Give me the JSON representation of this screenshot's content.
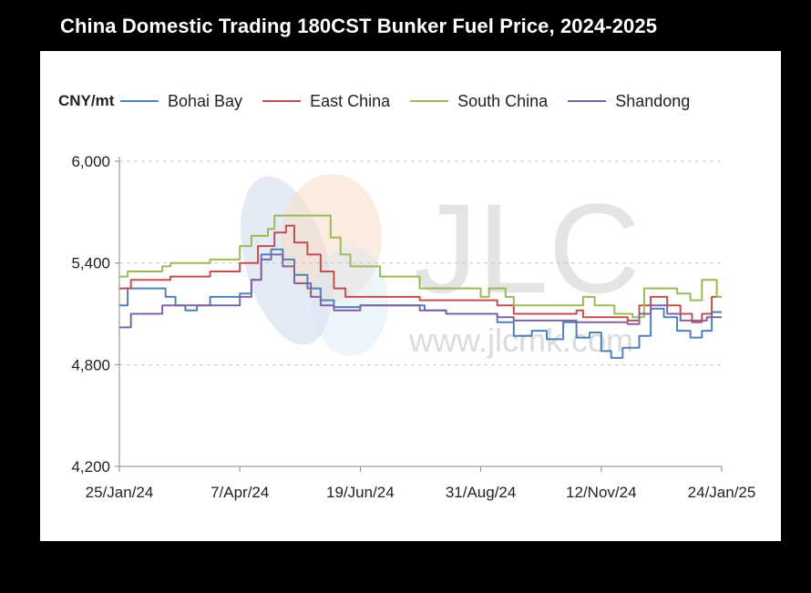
{
  "chart_data": {
    "type": "line",
    "title": "China Domestic Trading 180CST Bunker Fuel Price, 2024-2025",
    "ylabel": "CNY/mt",
    "ylim": [
      4200,
      6000
    ],
    "yticks": [
      "6,000",
      "5,400",
      "4,800",
      "4,200"
    ],
    "ytick_values": [
      6000,
      5400,
      4800,
      4200
    ],
    "xlim": [
      "2024-01-25",
      "2025-01-24"
    ],
    "xticks": [
      "25/Jan/24",
      "7/Apr/24",
      "19/Jun/24",
      "31/Aug/24",
      "12/Nov/24",
      "24/Jan/25"
    ],
    "xtick_dates": [
      "2024-01-25",
      "2024-04-07",
      "2024-06-19",
      "2024-08-31",
      "2024-11-12",
      "2025-01-24"
    ],
    "grid": "horizontal dashed",
    "legend_position": "top",
    "watermark": {
      "logo_text": "JLC",
      "url_text": "www.jlcmk.com"
    },
    "series": [
      {
        "name": "Bohai Bay",
        "color": "#4f81bd",
        "points": [
          [
            "2024-01-25",
            5150
          ],
          [
            "2024-01-30",
            5250
          ],
          [
            "2024-02-18",
            5250
          ],
          [
            "2024-02-22",
            5200
          ],
          [
            "2024-02-28",
            5150
          ],
          [
            "2024-03-05",
            5120
          ],
          [
            "2024-03-12",
            5150
          ],
          [
            "2024-03-20",
            5200
          ],
          [
            "2024-04-07",
            5220
          ],
          [
            "2024-04-14",
            5300
          ],
          [
            "2024-04-20",
            5450
          ],
          [
            "2024-04-26",
            5480
          ],
          [
            "2024-05-03",
            5420
          ],
          [
            "2024-05-10",
            5330
          ],
          [
            "2024-05-18",
            5250
          ],
          [
            "2024-05-26",
            5180
          ],
          [
            "2024-06-03",
            5140
          ],
          [
            "2024-06-19",
            5150
          ],
          [
            "2024-07-01",
            5150
          ],
          [
            "2024-07-18",
            5150
          ],
          [
            "2024-07-28",
            5120
          ],
          [
            "2024-08-10",
            5100
          ],
          [
            "2024-08-31",
            5100
          ],
          [
            "2024-09-10",
            5050
          ],
          [
            "2024-09-20",
            4970
          ],
          [
            "2024-10-01",
            5000
          ],
          [
            "2024-10-10",
            4950
          ],
          [
            "2024-10-20",
            5050
          ],
          [
            "2024-10-28",
            4960
          ],
          [
            "2024-11-05",
            4990
          ],
          [
            "2024-11-12",
            4880
          ],
          [
            "2024-11-18",
            4840
          ],
          [
            "2024-11-25",
            4900
          ],
          [
            "2024-12-05",
            4970
          ],
          [
            "2024-12-12",
            5130
          ],
          [
            "2024-12-20",
            5080
          ],
          [
            "2024-12-28",
            5000
          ],
          [
            "2025-01-05",
            4960
          ],
          [
            "2025-01-12",
            5000
          ],
          [
            "2025-01-18",
            5110
          ],
          [
            "2025-01-24",
            5110
          ]
        ]
      },
      {
        "name": "East China",
        "color": "#c0504d",
        "points": [
          [
            "2024-01-25",
            5250
          ],
          [
            "2024-02-01",
            5300
          ],
          [
            "2024-02-20",
            5300
          ],
          [
            "2024-02-25",
            5320
          ],
          [
            "2024-03-20",
            5350
          ],
          [
            "2024-04-07",
            5400
          ],
          [
            "2024-04-18",
            5500
          ],
          [
            "2024-04-28",
            5580
          ],
          [
            "2024-05-05",
            5620
          ],
          [
            "2024-05-10",
            5520
          ],
          [
            "2024-05-18",
            5450
          ],
          [
            "2024-05-26",
            5350
          ],
          [
            "2024-06-03",
            5250
          ],
          [
            "2024-06-10",
            5200
          ],
          [
            "2024-06-19",
            5200
          ],
          [
            "2024-07-10",
            5200
          ],
          [
            "2024-07-25",
            5180
          ],
          [
            "2024-08-31",
            5180
          ],
          [
            "2024-09-10",
            5150
          ],
          [
            "2024-09-20",
            5100
          ],
          [
            "2024-10-10",
            5100
          ],
          [
            "2024-10-28",
            5120
          ],
          [
            "2024-11-01",
            5080
          ],
          [
            "2024-11-12",
            5080
          ],
          [
            "2024-11-28",
            5060
          ],
          [
            "2024-12-05",
            5150
          ],
          [
            "2024-12-12",
            5200
          ],
          [
            "2024-12-22",
            5150
          ],
          [
            "2024-12-30",
            5100
          ],
          [
            "2025-01-06",
            5050
          ],
          [
            "2025-01-12",
            5100
          ],
          [
            "2025-01-18",
            5200
          ],
          [
            "2025-01-24",
            5200
          ]
        ]
      },
      {
        "name": "South China",
        "color": "#9bbb59",
        "points": [
          [
            "2024-01-25",
            5320
          ],
          [
            "2024-01-30",
            5350
          ],
          [
            "2024-02-20",
            5380
          ],
          [
            "2024-02-25",
            5400
          ],
          [
            "2024-03-20",
            5420
          ],
          [
            "2024-04-07",
            5500
          ],
          [
            "2024-04-14",
            5560
          ],
          [
            "2024-04-24",
            5600
          ],
          [
            "2024-04-28",
            5680
          ],
          [
            "2024-05-26",
            5680
          ],
          [
            "2024-06-01",
            5550
          ],
          [
            "2024-06-07",
            5450
          ],
          [
            "2024-06-13",
            5380
          ],
          [
            "2024-06-19",
            5380
          ],
          [
            "2024-07-01",
            5320
          ],
          [
            "2024-07-25",
            5250
          ],
          [
            "2024-08-31",
            5200
          ],
          [
            "2024-09-05",
            5250
          ],
          [
            "2024-09-15",
            5200
          ],
          [
            "2024-09-20",
            5150
          ],
          [
            "2024-10-28",
            5150
          ],
          [
            "2024-11-01",
            5200
          ],
          [
            "2024-11-08",
            5150
          ],
          [
            "2024-11-20",
            5100
          ],
          [
            "2024-12-01",
            5080
          ],
          [
            "2024-12-08",
            5250
          ],
          [
            "2024-12-20",
            5250
          ],
          [
            "2024-12-28",
            5220
          ],
          [
            "2025-01-05",
            5180
          ],
          [
            "2025-01-12",
            5300
          ],
          [
            "2025-01-18",
            5300
          ],
          [
            "2025-01-21",
            5200
          ],
          [
            "2025-01-24",
            5200
          ]
        ]
      },
      {
        "name": "Shandong",
        "color": "#8064a2",
        "points": [
          [
            "2024-01-25",
            5020
          ],
          [
            "2024-02-01",
            5100
          ],
          [
            "2024-02-20",
            5150
          ],
          [
            "2024-03-20",
            5150
          ],
          [
            "2024-04-07",
            5200
          ],
          [
            "2024-04-14",
            5300
          ],
          [
            "2024-04-20",
            5420
          ],
          [
            "2024-04-26",
            5450
          ],
          [
            "2024-05-03",
            5380
          ],
          [
            "2024-05-10",
            5280
          ],
          [
            "2024-05-20",
            5200
          ],
          [
            "2024-05-26",
            5150
          ],
          [
            "2024-06-03",
            5120
          ],
          [
            "2024-06-19",
            5150
          ],
          [
            "2024-07-10",
            5150
          ],
          [
            "2024-07-25",
            5120
          ],
          [
            "2024-08-10",
            5100
          ],
          [
            "2024-08-31",
            5100
          ],
          [
            "2024-09-10",
            5080
          ],
          [
            "2024-09-20",
            5060
          ],
          [
            "2024-10-10",
            5060
          ],
          [
            "2024-10-28",
            5050
          ],
          [
            "2024-11-12",
            5050
          ],
          [
            "2024-11-28",
            5040
          ],
          [
            "2024-12-05",
            5100
          ],
          [
            "2024-12-12",
            5150
          ],
          [
            "2024-12-22",
            5100
          ],
          [
            "2024-12-30",
            5060
          ],
          [
            "2025-01-08",
            5060
          ],
          [
            "2025-01-15",
            5080
          ],
          [
            "2025-01-24",
            5080
          ]
        ]
      }
    ]
  }
}
